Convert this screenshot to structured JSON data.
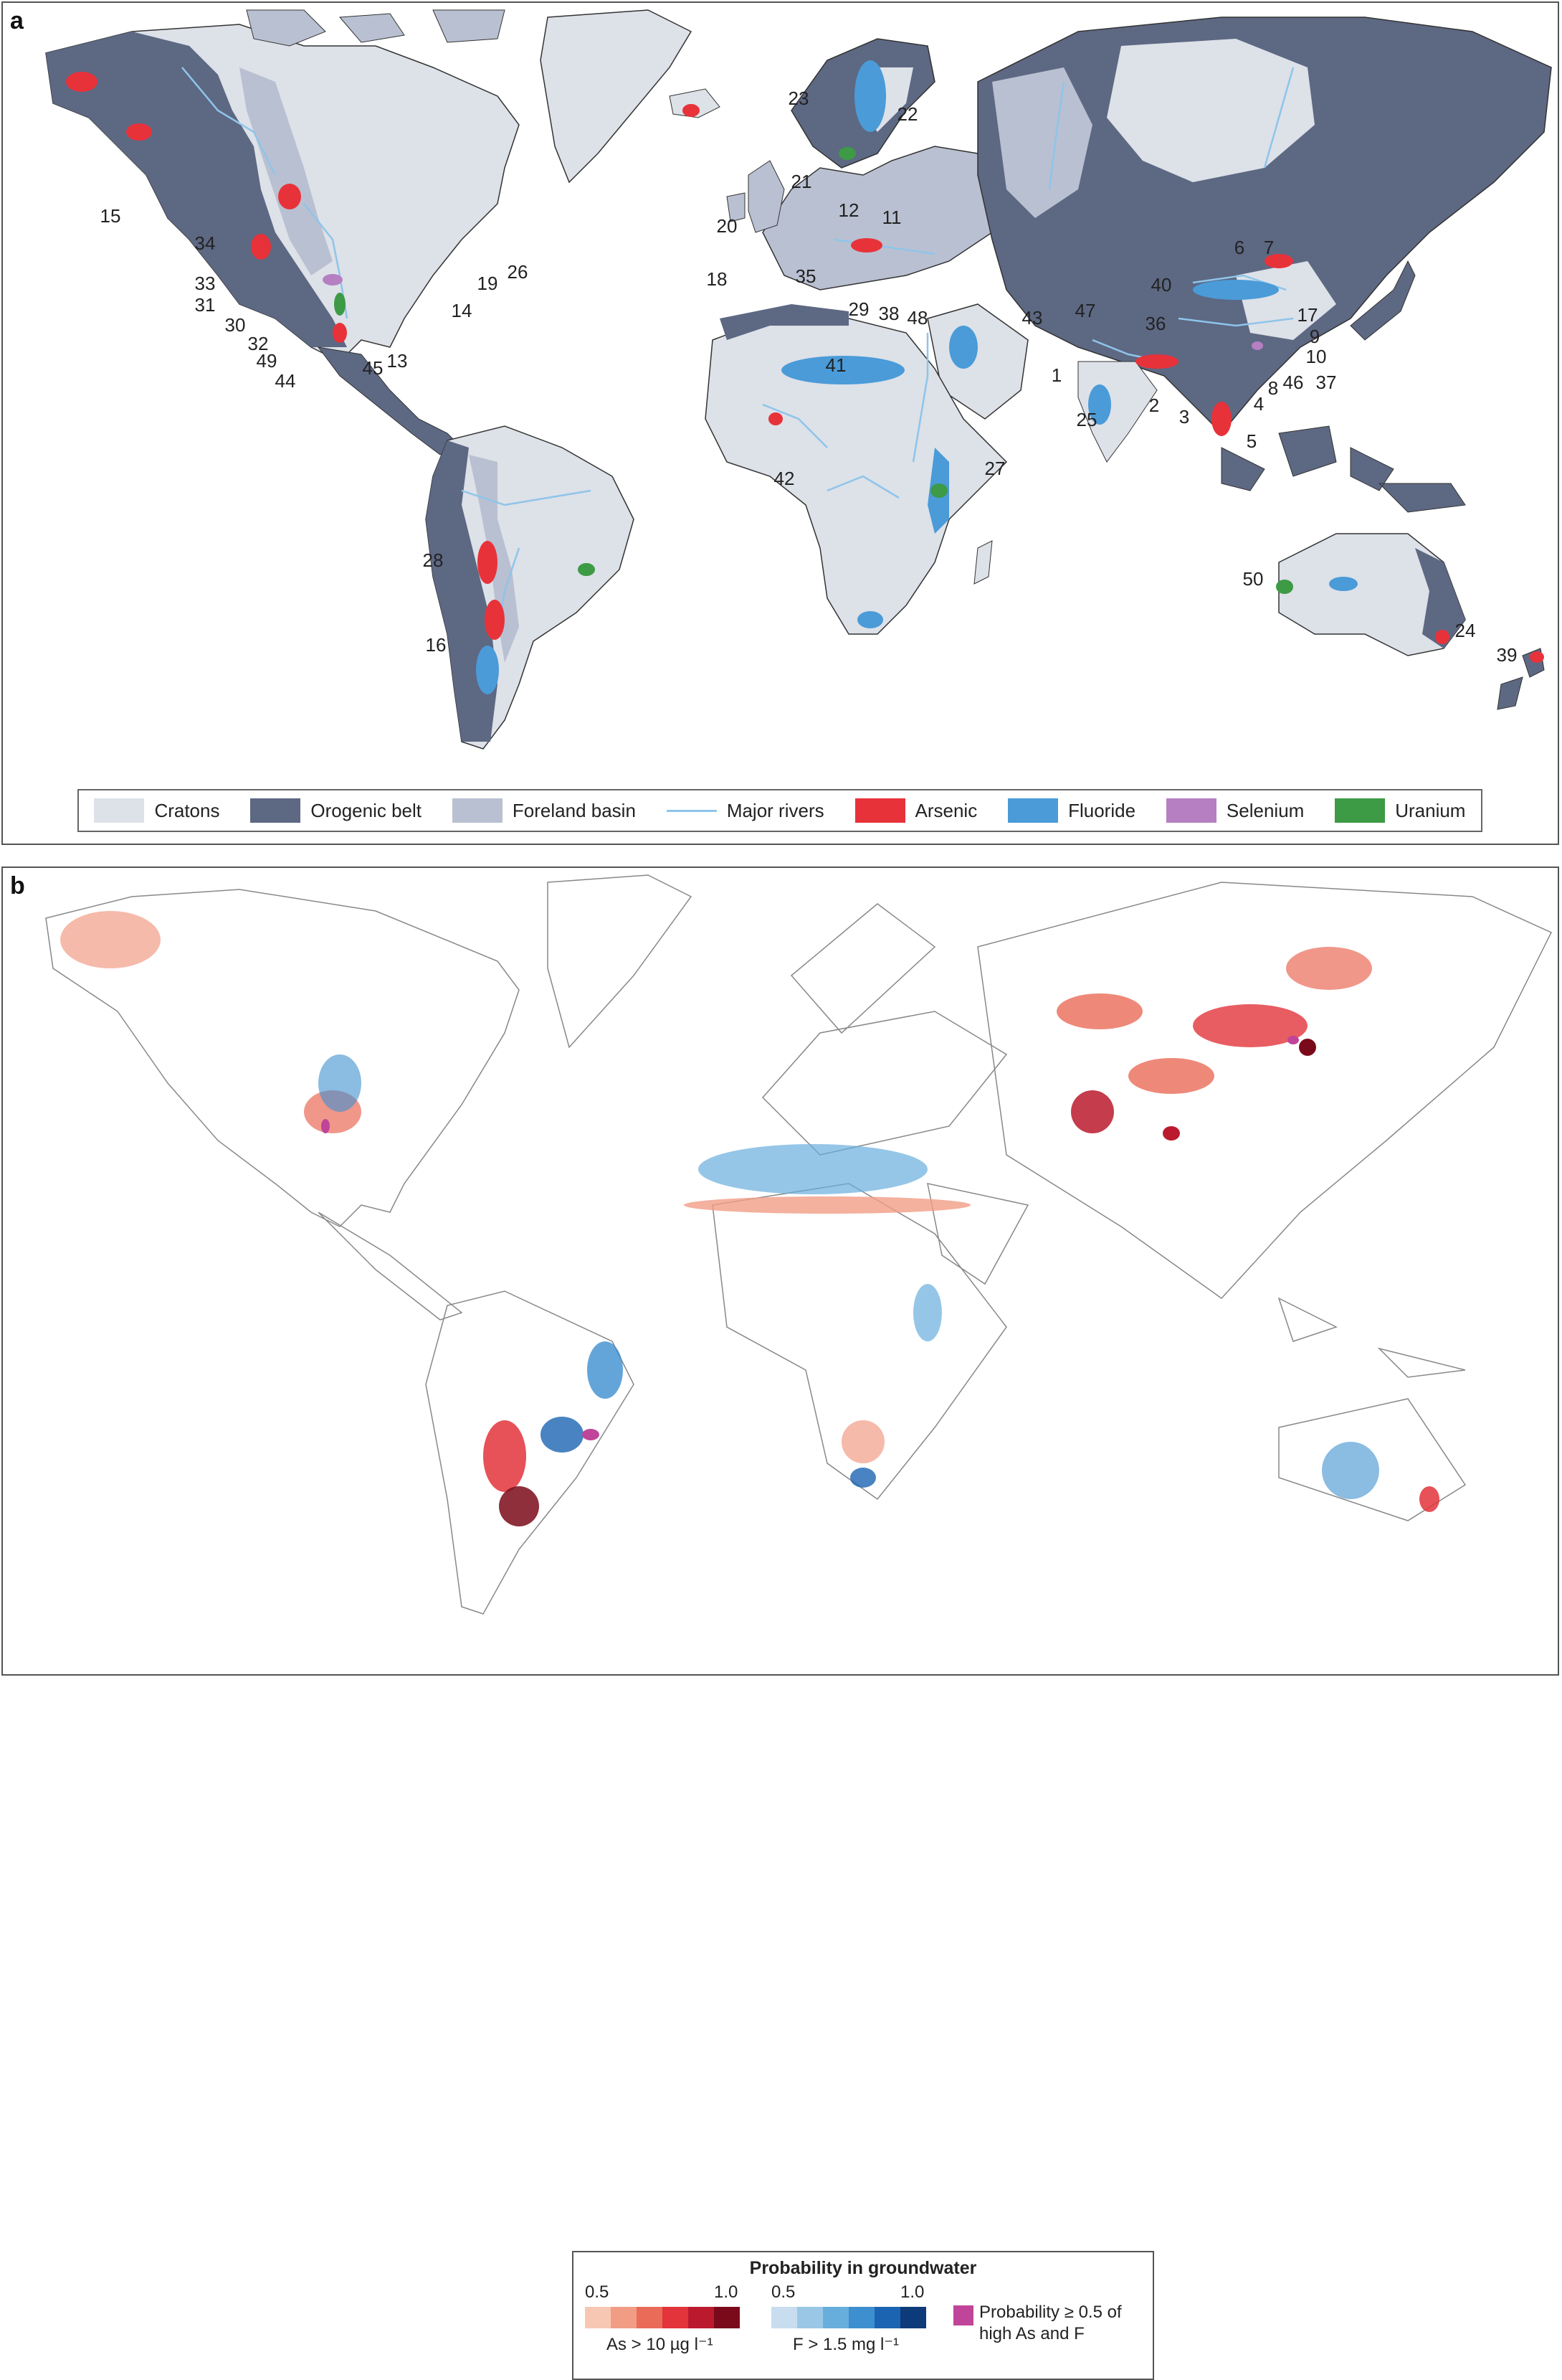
{
  "panel_a": {
    "letter": "a",
    "site_labels": [
      "1",
      "2",
      "3",
      "4",
      "5",
      "6",
      "7",
      "8",
      "9",
      "10",
      "11",
      "12",
      "13",
      "14",
      "15",
      "16",
      "17",
      "18",
      "19",
      "20",
      "21",
      "22",
      "23",
      "24",
      "25",
      "26",
      "27",
      "28",
      "29",
      "30",
      "31",
      "32",
      "33",
      "34",
      "35",
      "36",
      "37",
      "38",
      "39",
      "40",
      "41",
      "42",
      "43",
      "44",
      "45",
      "46",
      "47",
      "48",
      "49",
      "50"
    ],
    "legend": [
      {
        "label": "Cratons",
        "color": "#dde1e8",
        "kind": "fill"
      },
      {
        "label": "Orogenic belt",
        "color": "#5d6883",
        "kind": "fill"
      },
      {
        "label": "Foreland basin",
        "color": "#b9c0d1",
        "kind": "fill"
      },
      {
        "label": "Major rivers",
        "color": "#8ec5ea",
        "kind": "line"
      },
      {
        "label": "Arsenic",
        "color": "#e8323a",
        "kind": "fill"
      },
      {
        "label": "Fluoride",
        "color": "#4a9bd8",
        "kind": "fill"
      },
      {
        "label": "Selenium",
        "color": "#b57fc2",
        "kind": "fill"
      },
      {
        "label": "Uranium",
        "color": "#3d9a45",
        "kind": "fill"
      }
    ]
  },
  "panel_b": {
    "letter": "b",
    "legend": {
      "title": "Probability in groundwater",
      "as_scale": {
        "min": "0.5",
        "max": "1.0",
        "caption": "As > 10 µg l⁻¹",
        "colors": [
          "#f7c7b4",
          "#f19d86",
          "#ea6b57",
          "#e2343a",
          "#bb1a2e",
          "#7a0a19"
        ]
      },
      "f_scale": {
        "min": "0.5",
        "max": "1.0",
        "caption": "F > 1.5 mg l⁻¹",
        "colors": [
          "#c8ddef",
          "#9ac7e6",
          "#68aedd",
          "#3d8fcf",
          "#1b64b1",
          "#0d3a78"
        ]
      },
      "combo": {
        "label_line1": "Probability ≥ 0.5 of",
        "label_line2": "high As and F",
        "color": "#c0449a"
      }
    }
  }
}
